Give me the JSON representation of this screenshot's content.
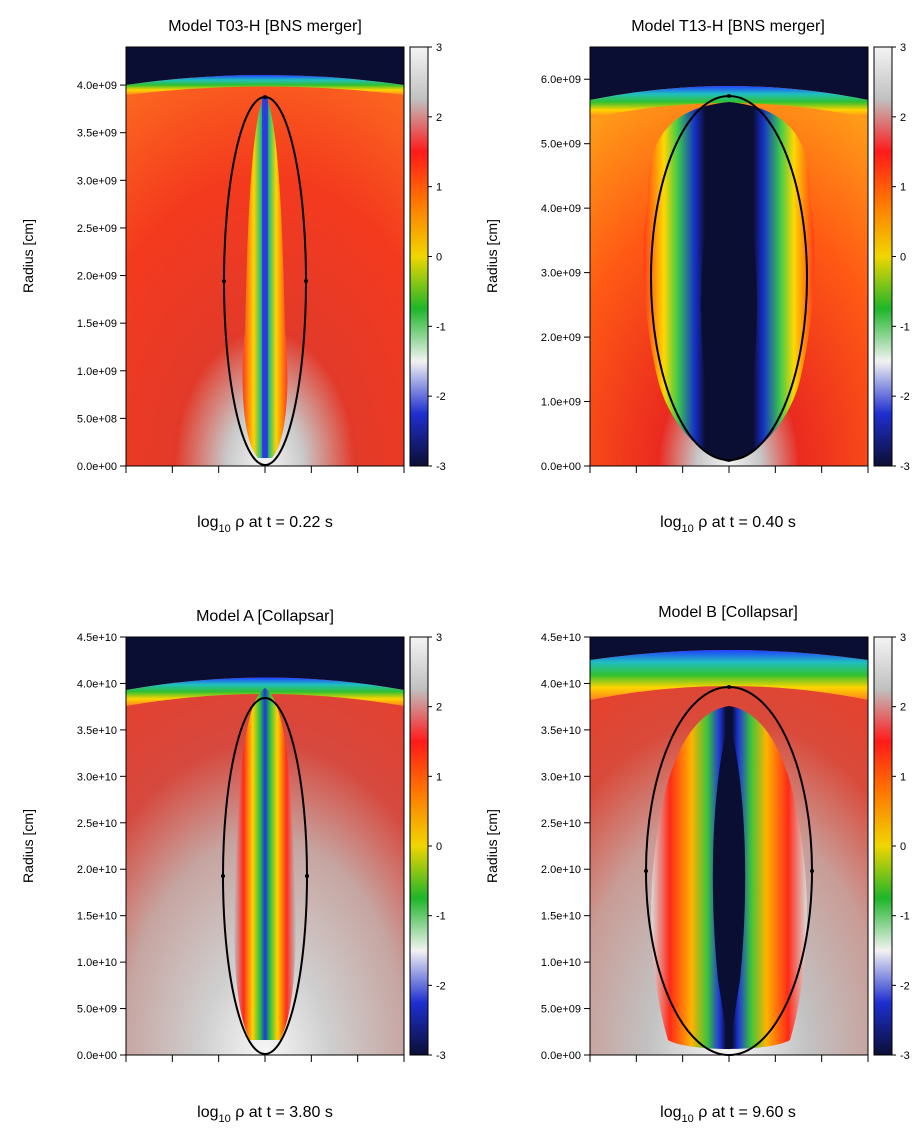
{
  "colorbar": {
    "ticks": [
      3,
      2,
      1,
      0,
      -1,
      -2,
      -3
    ],
    "range": [
      -3,
      3
    ],
    "stops": [
      "#0b0e33",
      "#1e2fd0",
      "#f2f2f2",
      "#1fb52a",
      "#f0d600",
      "#ff7a00",
      "#ff1a1a",
      "#c0c0c0",
      "#f4f4f4"
    ]
  },
  "colors": {
    "ambient_dark": "#0b0e33",
    "ellipse": "#000000"
  },
  "chart_data": [
    {
      "type": "heatmap",
      "title": "Model T03-H [BNS merger]",
      "caption_prefix": "log",
      "caption_sub": "10",
      "caption_rest": " ρ at t =  0.22 s",
      "ylabel": "Radius [cm]",
      "yticks": [
        "4.0e+09",
        "3.5e+09",
        "3.0e+09",
        "2.5e+09",
        "2.0e+09",
        "1.5e+09",
        "1.0e+09",
        "5.0e+08",
        "0.0e+00"
      ],
      "ytick_values": [
        4000000000.0,
        3500000000.0,
        3000000000.0,
        2500000000.0,
        2000000000.0,
        1500000000.0,
        1000000000.0,
        500000000.0,
        0.0
      ],
      "ylim": [
        0,
        4400000000.0
      ],
      "colorbar_label": "log10 rho",
      "colorbar_range": [
        -3,
        3
      ]
    },
    {
      "type": "heatmap",
      "title": "Model T13-H [BNS merger]",
      "caption_prefix": "log",
      "caption_sub": "10",
      "caption_rest": " ρ at t =  0.40 s",
      "ylabel": "Radius [cm]",
      "yticks": [
        "6.0e+09",
        "5.0e+09",
        "4.0e+09",
        "3.0e+09",
        "2.0e+09",
        "1.0e+09",
        "0.0e+00"
      ],
      "ytick_values": [
        6000000000.0,
        5000000000.0,
        4000000000.0,
        3000000000.0,
        2000000000.0,
        1000000000.0,
        0.0
      ],
      "ylim": [
        0,
        6500000000.0
      ],
      "colorbar_label": "log10 rho",
      "colorbar_range": [
        -3,
        3
      ]
    },
    {
      "type": "heatmap",
      "title": "Model A [Collapsar]",
      "caption_prefix": "log",
      "caption_sub": "10",
      "caption_rest": " ρ at t =  3.80 s",
      "ylabel": "Radius [cm]",
      "yticks": [
        "4.5e+10",
        "4.0e+10",
        "3.5e+10",
        "3.0e+10",
        "2.5e+10",
        "2.0e+10",
        "1.5e+10",
        "1.0e+10",
        "5.0e+09",
        "0.0e+00"
      ],
      "ytick_values": [
        45000000000.0,
        40000000000.0,
        35000000000.0,
        30000000000.0,
        25000000000.0,
        20000000000.0,
        15000000000.0,
        10000000000.0,
        5000000000.0,
        0.0
      ],
      "ylim": [
        0,
        45000000000.0
      ],
      "colorbar_label": "log10 rho",
      "colorbar_range": [
        -3,
        3
      ]
    },
    {
      "type": "heatmap",
      "title": "Model B [Collapsar]",
      "caption_prefix": "log",
      "caption_sub": "10",
      "caption_rest": " ρ at t =  9.60 s",
      "ylabel": "Radius [cm]",
      "yticks": [
        "4.5e+10",
        "4.0e+10",
        "3.5e+10",
        "3.0e+10",
        "2.5e+10",
        "2.0e+10",
        "1.5e+10",
        "1.0e+10",
        "5.0e+09",
        "0.0e+00"
      ],
      "ytick_values": [
        45000000000.0,
        40000000000.0,
        35000000000.0,
        30000000000.0,
        25000000000.0,
        20000000000.0,
        15000000000.0,
        10000000000.0,
        5000000000.0,
        0.0
      ],
      "ylim": [
        0,
        45000000000.0
      ],
      "colorbar_label": "log10 rho",
      "colorbar_range": [
        -3,
        3
      ]
    }
  ]
}
